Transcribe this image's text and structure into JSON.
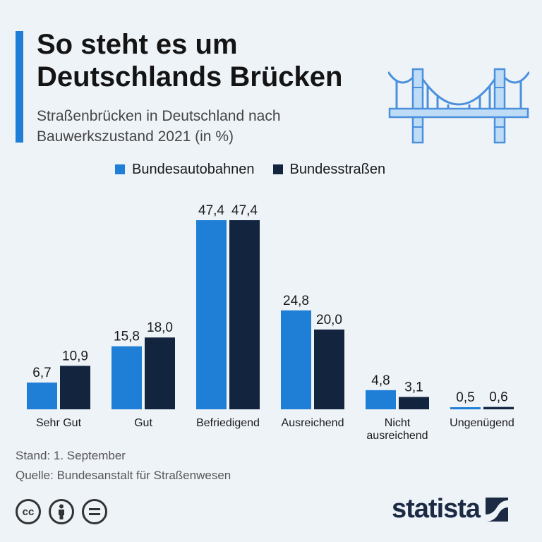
{
  "header": {
    "title": "So steht es um Deutschlands Brücken",
    "subtitle": "Straßenbrücken in Deutschland nach Bauwerkszustand 2021 (in %)"
  },
  "colors": {
    "accent": "#1f7fd6",
    "bundesautobahnen": "#1f7fd6",
    "bundesstrassen": "#13243f"
  },
  "chart_data": {
    "type": "bar",
    "title": "So steht es um Deutschlands Brücken",
    "subtitle": "Straßenbrücken in Deutschland nach Bauwerkszustand 2021 (in %)",
    "categories": [
      "Sehr Gut",
      "Gut",
      "Befriedigend",
      "Ausreichend",
      "Nicht ausreichend",
      "Ungenügend"
    ],
    "category_lines": [
      [
        "Sehr Gut"
      ],
      [
        "Gut"
      ],
      [
        "Befriedigend"
      ],
      [
        "Ausreichend"
      ],
      [
        "Nicht",
        "ausreichend"
      ],
      [
        "Ungenügend"
      ]
    ],
    "series": [
      {
        "name": "Bundesautobahnen",
        "values": [
          6.7,
          15.8,
          47.4,
          24.8,
          4.8,
          0.5
        ],
        "labels": [
          "6,7",
          "15,8",
          "47,4",
          "24,8",
          "4,8",
          "0,5"
        ]
      },
      {
        "name": "Bundesstraßen",
        "values": [
          10.9,
          18.0,
          47.4,
          20.0,
          3.1,
          0.6
        ],
        "labels": [
          "10,9",
          "18,0",
          "47,4",
          "20,0",
          "3,1",
          "0,6"
        ]
      }
    ],
    "ylim": [
      0,
      50
    ],
    "grid": false,
    "legend": "top"
  },
  "footer": {
    "stand": "Stand: 1. September",
    "source": "Quelle: Bundesanstalt für Straßenwesen",
    "brand": "statista"
  },
  "icons": [
    "bridge-icon",
    "creative-commons-icon",
    "attribution-icon",
    "no-derivatives-icon",
    "statista-logo-icon"
  ]
}
